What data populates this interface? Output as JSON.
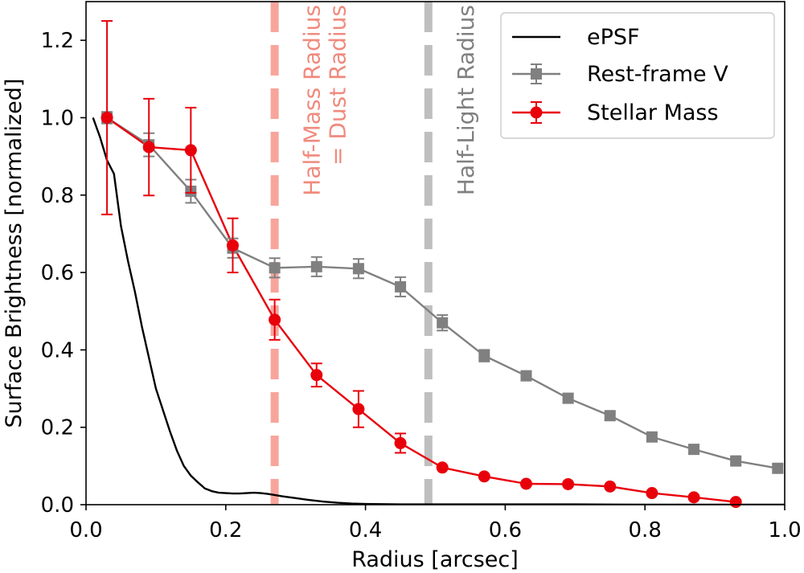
{
  "chart_data": {
    "type": "line",
    "xlabel": "Radius [arcsec]",
    "ylabel": "Surface Brightness [normalized]",
    "xlim": [
      0.0,
      1.0
    ],
    "ylim": [
      0.0,
      1.3
    ],
    "xticks": [
      "0.0",
      "0.2",
      "0.4",
      "0.6",
      "0.8",
      "1.0"
    ],
    "yticks": [
      "0.0",
      "0.2",
      "0.4",
      "0.6",
      "0.8",
      "1.0",
      "1.2"
    ],
    "legend_position": "top-right",
    "series": [
      {
        "name": "ePSF",
        "color": "#000000",
        "marker": "none",
        "x": [
          0.01,
          0.02,
          0.03,
          0.04,
          0.05,
          0.06,
          0.07,
          0.08,
          0.09,
          0.1,
          0.11,
          0.12,
          0.13,
          0.14,
          0.15,
          0.16,
          0.17,
          0.18,
          0.19,
          0.2,
          0.21,
          0.22,
          0.23,
          0.24,
          0.25,
          0.26,
          0.27,
          0.28,
          0.3,
          0.32,
          0.34,
          0.36,
          0.38,
          0.4,
          0.45,
          0.5,
          0.6,
          0.7,
          0.8,
          0.9,
          1.0
        ],
        "y": [
          1.0,
          0.95,
          0.89,
          0.855,
          0.72,
          0.63,
          0.55,
          0.46,
          0.38,
          0.3,
          0.245,
          0.19,
          0.14,
          0.1,
          0.075,
          0.058,
          0.042,
          0.035,
          0.031,
          0.03,
          0.029,
          0.029,
          0.03,
          0.031,
          0.03,
          0.028,
          0.025,
          0.022,
          0.017,
          0.012,
          0.008,
          0.005,
          0.003,
          0.002,
          0.001,
          0.001,
          0.001,
          0.001,
          0.0,
          0.0,
          0.0
        ]
      },
      {
        "name": "Rest-frame V",
        "color": "#808080",
        "marker": "square",
        "x": [
          0.03,
          0.09,
          0.15,
          0.21,
          0.27,
          0.33,
          0.39,
          0.45,
          0.51,
          0.57,
          0.63,
          0.69,
          0.75,
          0.81,
          0.87,
          0.93,
          0.99
        ],
        "y": [
          1.0,
          0.93,
          0.81,
          0.663,
          0.612,
          0.615,
          0.61,
          0.563,
          0.47,
          0.385,
          0.333,
          0.275,
          0.23,
          0.175,
          0.143,
          0.113,
          0.094
        ],
        "err": [
          0.015,
          0.03,
          0.03,
          0.025,
          0.025,
          0.025,
          0.025,
          0.025,
          0.02,
          0.015,
          0.012,
          0.012,
          0.01,
          0.01,
          0.01,
          0.01,
          0.01
        ]
      },
      {
        "name": "Stellar Mass",
        "color": "#e8000b",
        "marker": "circle",
        "x": [
          0.03,
          0.09,
          0.15,
          0.21,
          0.27,
          0.33,
          0.39,
          0.45,
          0.51,
          0.57,
          0.63,
          0.69,
          0.75,
          0.81,
          0.87,
          0.93
        ],
        "y": [
          1.0,
          0.924,
          0.916,
          0.67,
          0.478,
          0.335,
          0.247,
          0.159,
          0.096,
          0.073,
          0.054,
          0.053,
          0.047,
          0.03,
          0.019,
          0.007
        ],
        "err": [
          0.25,
          0.125,
          0.11,
          0.07,
          0.052,
          0.03,
          0.047,
          0.025,
          0.0,
          0.0,
          0.0,
          0.0,
          0.0,
          0.0,
          0.0,
          0.0
        ]
      }
    ],
    "vlines": [
      {
        "x": 0.27,
        "color": "#f7a59c",
        "style": "dashed",
        "label_line1": "Half-Mass Radius",
        "label_line2": "= Dust Radius",
        "label_color": "#f08a7e"
      },
      {
        "x": 0.49,
        "color": "#bfbfbf",
        "style": "dashed",
        "label_line1": "Half-Light Radius",
        "label_line2": "",
        "label_color": "#808080"
      }
    ]
  }
}
